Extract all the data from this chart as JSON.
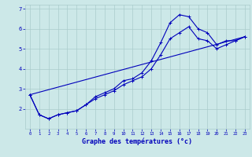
{
  "xlabel": "Graphe des températures (°c)",
  "background_color": "#cce8e8",
  "grid_color": "#aacccc",
  "line_color": "#0000bb",
  "xlim": [
    -0.5,
    23.5
  ],
  "ylim": [
    1.0,
    7.2
  ],
  "yticks": [
    2,
    3,
    4,
    5,
    6,
    7
  ],
  "xticks": [
    0,
    1,
    2,
    3,
    4,
    5,
    6,
    7,
    8,
    9,
    10,
    11,
    12,
    13,
    14,
    15,
    16,
    17,
    18,
    19,
    20,
    21,
    22,
    23
  ],
  "line1_x": [
    0,
    1,
    2,
    3,
    4,
    5,
    6,
    7,
    8,
    9,
    10,
    11,
    12,
    13,
    14,
    15,
    16,
    17,
    18,
    19,
    20,
    21,
    22,
    23
  ],
  "line1_y": [
    2.7,
    1.7,
    1.5,
    1.7,
    1.8,
    1.9,
    2.2,
    2.6,
    2.8,
    3.0,
    3.4,
    3.5,
    3.8,
    4.4,
    5.3,
    6.3,
    6.7,
    6.6,
    6.0,
    5.8,
    5.2,
    5.4,
    5.4,
    5.6
  ],
  "line2_x": [
    0,
    1,
    2,
    3,
    4,
    5,
    6,
    7,
    8,
    9,
    10,
    11,
    12,
    13,
    14,
    15,
    16,
    17,
    18,
    19,
    20,
    21,
    22,
    23
  ],
  "line2_y": [
    2.7,
    1.7,
    1.5,
    1.7,
    1.8,
    1.9,
    2.2,
    2.5,
    2.7,
    2.9,
    3.2,
    3.4,
    3.6,
    4.0,
    4.7,
    5.5,
    5.8,
    6.1,
    5.5,
    5.4,
    5.0,
    5.2,
    5.4,
    5.6
  ],
  "line3_x": [
    0,
    23
  ],
  "line3_y": [
    2.7,
    5.6
  ],
  "xlabel_fontsize": 6,
  "xtick_fontsize": 4,
  "ytick_fontsize": 5,
  "linewidth": 0.8,
  "marker_size": 2.5,
  "marker_ew": 0.7
}
